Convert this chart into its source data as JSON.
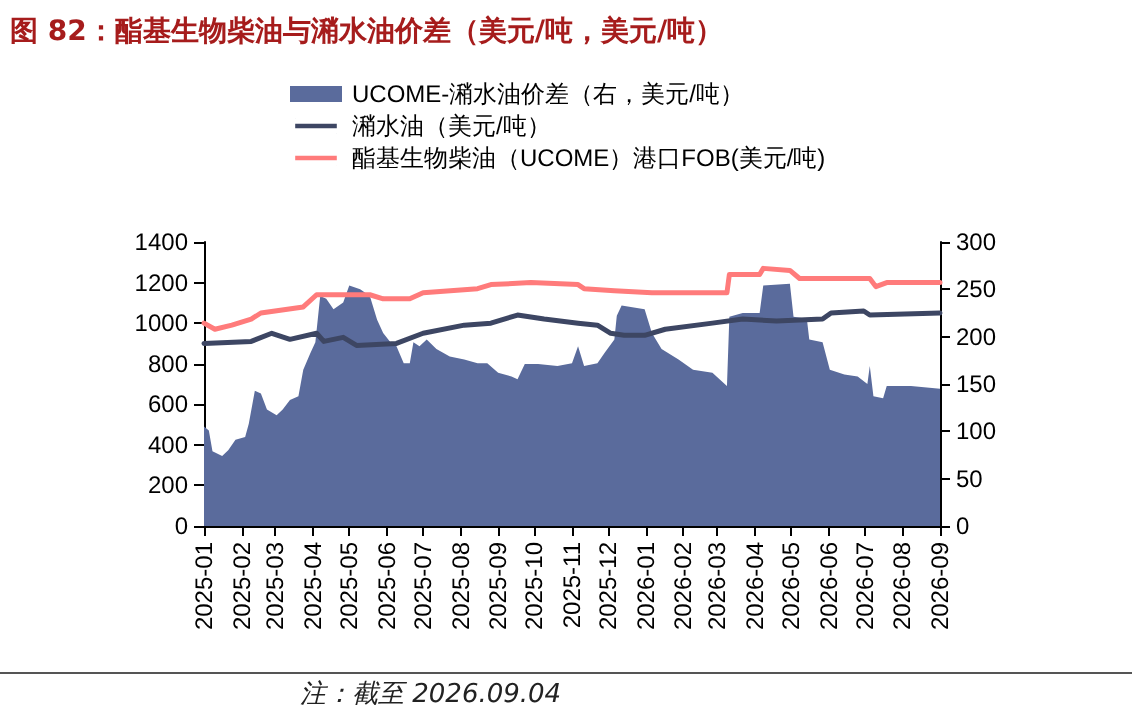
{
  "chart_data": {
    "type": "line",
    "title": "图 82：酯基生物柴油与潲水油价差（美元/吨，美元/吨）",
    "annotations": [
      "注：截至 2026.09.04"
    ],
    "xlim": [
      "2025-01",
      "2026-09"
    ],
    "xticks": [
      "2025-01",
      "2025-02",
      "2025-03",
      "2025-04",
      "2025-05",
      "2025-06",
      "2025-07",
      "2025-08",
      "2025-09",
      "2025-10",
      "2025-11",
      "2025-12",
      "2026-01",
      "2026-02",
      "2026-03",
      "2026-04",
      "2026-05",
      "2026-06",
      "2026-07",
      "2026-08",
      "2026-09"
    ],
    "ylim": [
      0,
      1400
    ],
    "yticks": [
      0,
      200,
      400,
      600,
      800,
      1000,
      1200,
      1400
    ],
    "y2lim": [
      0,
      300
    ],
    "y2ticks": [
      0,
      50,
      100,
      150,
      200,
      250,
      300
    ],
    "legend": "top",
    "grid": false,
    "marker": "none",
    "series": [
      {
        "name": "UCOME-潲水油价差（右，美元/吨）",
        "type": "area",
        "axis": "y2",
        "color": "#5a6b9c",
        "x": [
          "2025-01-01",
          "2025-01-05",
          "2025-01-08",
          "2025-01-16",
          "2025-01-21",
          "2025-01-27",
          "2025-02-04",
          "2025-02-07",
          "2025-02-12",
          "2025-02-17",
          "2025-02-22",
          "2025-03-02",
          "2025-03-07",
          "2025-03-13",
          "2025-03-20",
          "2025-03-24",
          "2025-03-30",
          "2025-04-03",
          "2025-04-07",
          "2025-04-12",
          "2025-04-18",
          "2025-04-26",
          "2025-05-01",
          "2025-05-10",
          "2025-05-18",
          "2025-05-24",
          "2025-05-29",
          "2025-06-04",
          "2025-06-09",
          "2025-06-15",
          "2025-06-20",
          "2025-06-23",
          "2025-06-28",
          "2025-07-04",
          "2025-07-12",
          "2025-07-23",
          "2025-08-04",
          "2025-08-15",
          "2025-08-23",
          "2025-09-01",
          "2025-09-12",
          "2025-09-17",
          "2025-09-23",
          "2025-10-04",
          "2025-10-20",
          "2025-11-01",
          "2025-11-06",
          "2025-11-11",
          "2025-11-22",
          "2025-11-28",
          "2025-12-06",
          "2025-12-08",
          "2025-12-12",
          "2025-12-31",
          "2026-01-06",
          "2026-01-14",
          "2026-01-28",
          "2026-02-09",
          "2026-02-25",
          "2026-03-09",
          "2026-03-11",
          "2026-03-22",
          "2026-04-05",
          "2026-04-08",
          "2026-04-30",
          "2026-05-03",
          "2026-05-14",
          "2026-05-16",
          "2026-05-27",
          "2026-06-02",
          "2026-06-14",
          "2026-06-25",
          "2026-07-03",
          "2026-07-05",
          "2026-07-08",
          "2026-07-16",
          "2026-07-19",
          "2026-08-08",
          "2026-09-01"
        ],
        "values": [
          105,
          101,
          79,
          74,
          80,
          91,
          94,
          108,
          143,
          140,
          123,
          117,
          123,
          133,
          137,
          165,
          183,
          194,
          243,
          240,
          229,
          236,
          254,
          250,
          243,
          218,
          204,
          194,
          190,
          172,
          172,
          194,
          190,
          197,
          187,
          179,
          176,
          172,
          172,
          162,
          158,
          155,
          171,
          171,
          169,
          172,
          190,
          169,
          172,
          183,
          197,
          222,
          233,
          229,
          204,
          187,
          176,
          165,
          162,
          148,
          221,
          225,
          225,
          254,
          256,
          221,
          219,
          197,
          194,
          165,
          160,
          158,
          150,
          169,
          137,
          135,
          148,
          148,
          145
        ]
      },
      {
        "name": "潲水油（美元/吨）",
        "color": "#3d4663",
        "x": [
          "2025-01-01",
          "2025-02-09",
          "2025-02-26",
          "2025-03-13",
          "2025-04-04",
          "2025-04-10",
          "2025-04-26",
          "2025-05-07",
          "2025-06-09",
          "2025-07-01",
          "2025-08-04",
          "2025-08-26",
          "2025-09-17",
          "2025-10-09",
          "2025-11-06",
          "2025-11-22",
          "2025-12-03",
          "2025-12-14",
          "2025-12-31",
          "2026-01-17",
          "2026-02-25",
          "2026-03-22",
          "2026-04-19",
          "2026-05-27",
          "2026-06-03",
          "2026-06-30",
          "2026-07-05",
          "2026-09-01"
        ],
        "values": [
          900,
          910,
          950,
          920,
          950,
          910,
          930,
          890,
          900,
          950,
          990,
          1000,
          1040,
          1020,
          1000,
          990,
          950,
          940,
          940,
          970,
          1000,
          1020,
          1010,
          1020,
          1050,
          1060,
          1040,
          1050
        ]
      },
      {
        "name": "酯基生物柴油（UCOME）港口FOB(美元/吨)",
        "color": "#ff7b7b",
        "x": [
          "2025-01-01",
          "2025-01-10",
          "2025-01-24",
          "2025-02-09",
          "2025-02-17",
          "2025-03-24",
          "2025-04-04",
          "2025-05-18",
          "2025-05-29",
          "2025-06-20",
          "2025-07-01",
          "2025-08-15",
          "2025-08-26",
          "2025-09-28",
          "2025-11-06",
          "2025-11-11",
          "2025-12-06",
          "2026-01-06",
          "2026-03-09",
          "2026-03-11",
          "2026-04-05",
          "2026-04-08",
          "2026-04-30",
          "2026-05-08",
          "2026-07-05",
          "2026-07-10",
          "2026-07-19",
          "2026-09-01"
        ],
        "values": [
          1000,
          970,
          990,
          1020,
          1050,
          1080,
          1140,
          1140,
          1120,
          1120,
          1150,
          1170,
          1190,
          1200,
          1190,
          1170,
          1160,
          1150,
          1150,
          1240,
          1240,
          1270,
          1260,
          1220,
          1220,
          1180,
          1200,
          1200
        ]
      }
    ]
  }
}
